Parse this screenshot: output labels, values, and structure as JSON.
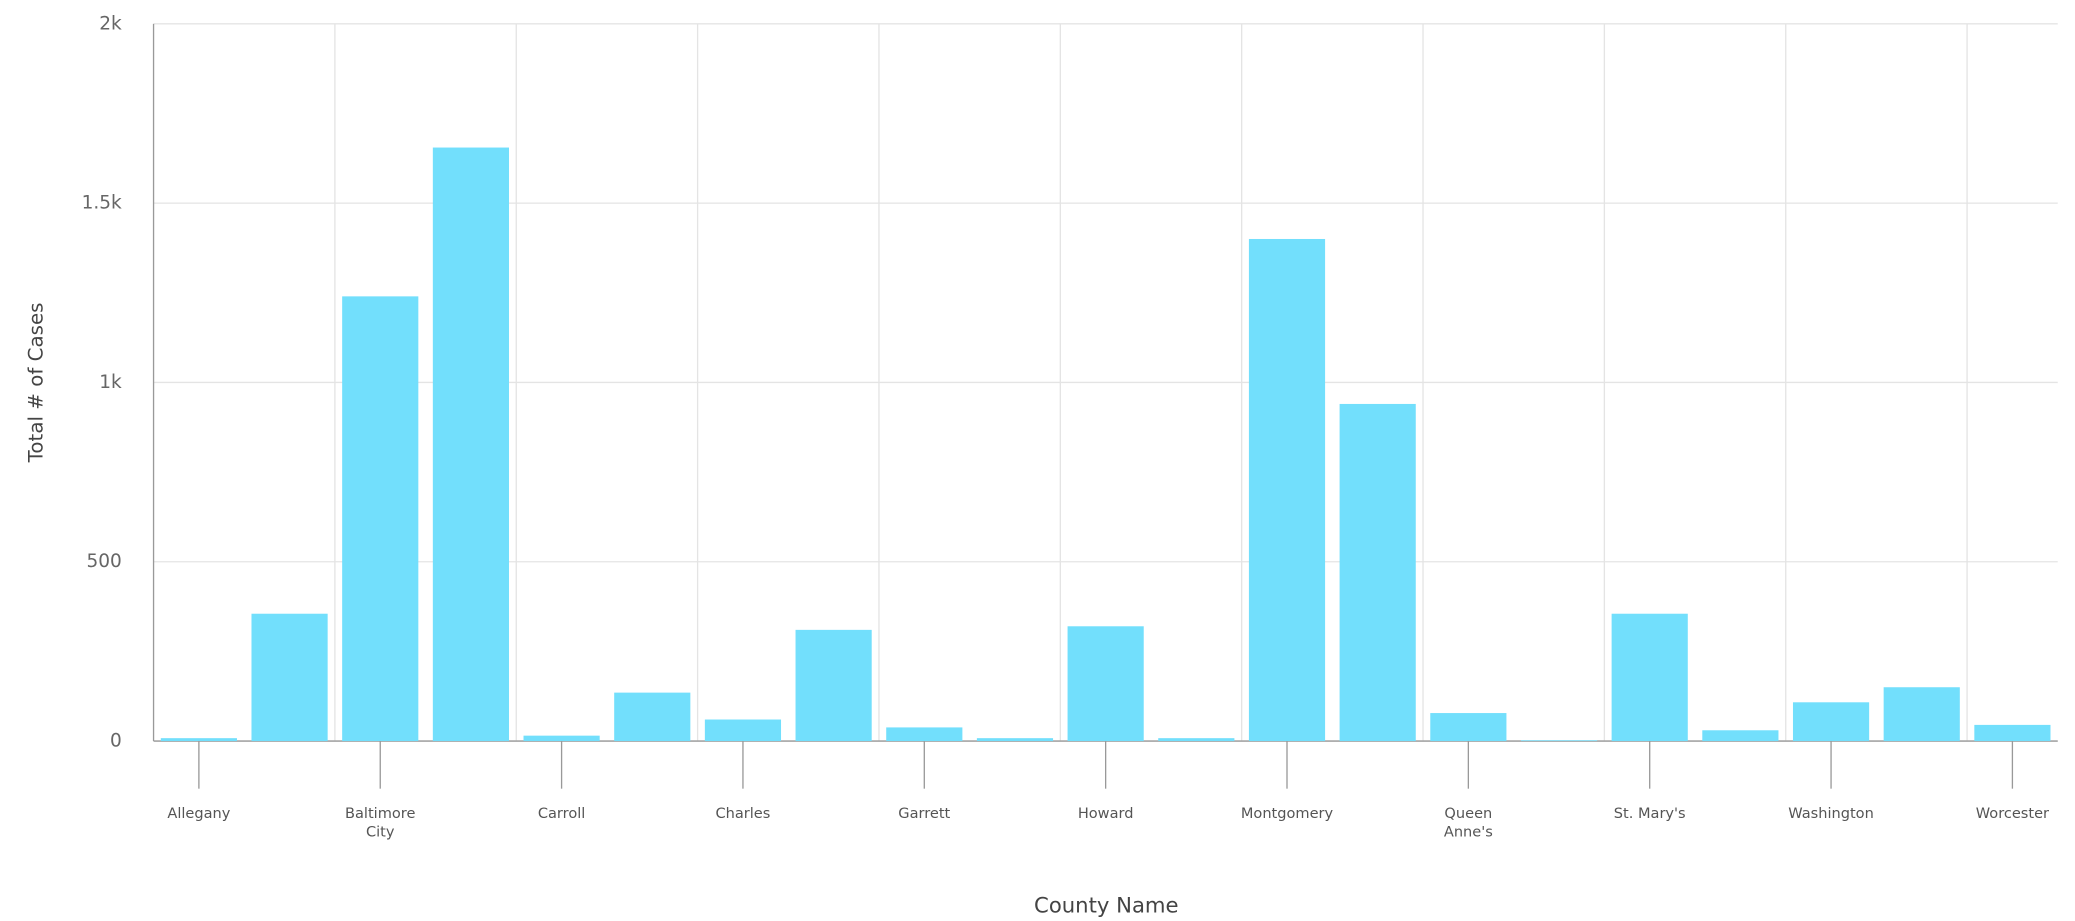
{
  "chart_data": {
    "type": "bar",
    "y_label": "Total # of Cases",
    "x_label": "County Name",
    "categories": [
      "Allegany",
      null,
      "Baltimore City",
      null,
      "Carroll",
      null,
      "Charles",
      null,
      "Garrett",
      null,
      "Howard",
      null,
      "Montgomery",
      null,
      "Queen Anne's",
      null,
      "St. Mary's",
      null,
      "Washington",
      null,
      "Worcester"
    ],
    "values": [
      8,
      355,
      1240,
      1655,
      15,
      135,
      60,
      310,
      38,
      8,
      320,
      8,
      1400,
      940,
      78,
      2,
      355,
      30,
      108,
      150,
      45
    ],
    "color": "#72dffc",
    "ylim": [
      0,
      2000
    ],
    "yticks": [
      0,
      500,
      {
        "value": 1000,
        "label": "1k"
      },
      {
        "value": 1500,
        "label": "1.5k"
      },
      {
        "value": 2000,
        "label": "2k"
      }
    ],
    "grid": true
  }
}
